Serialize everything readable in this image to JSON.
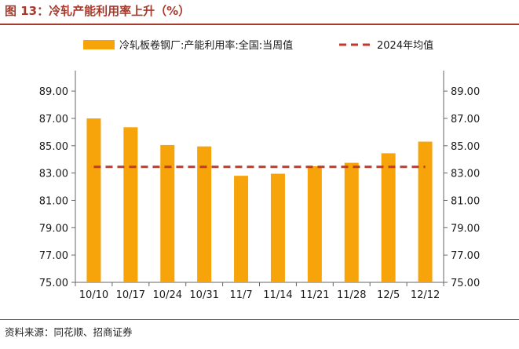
{
  "header": {
    "title": "图 13：冷轧产能利用率上升（%）"
  },
  "footer": {
    "source": "资料来源：同花顺、招商证券"
  },
  "chart_data": {
    "type": "bar",
    "categories": [
      "10/10",
      "10/17",
      "10/24",
      "10/31",
      "11/7",
      "11/14",
      "11/21",
      "11/28",
      "12/5",
      "12/12"
    ],
    "series": [
      {
        "name": "冷轧板卷钢厂:产能利用率:全国:当周值",
        "type": "bar",
        "color": "#f7a30a",
        "values": [
          87.0,
          86.35,
          85.05,
          84.95,
          82.8,
          82.95,
          83.5,
          83.75,
          84.45,
          85.3
        ]
      },
      {
        "name": "2024年均值",
        "type": "line",
        "style": "dashed",
        "color": "#c0392b",
        "values": [
          83.45,
          83.45,
          83.45,
          83.45,
          83.45,
          83.45,
          83.45,
          83.45,
          83.45,
          83.45
        ]
      }
    ],
    "y_left": {
      "min": 75,
      "max": 90.5,
      "ticks": [
        75.0,
        77.0,
        79.0,
        81.0,
        83.0,
        85.0,
        87.0,
        89.0
      ]
    },
    "y_right": {
      "min": 75,
      "max": 90.5,
      "ticks": [
        75.0,
        77.0,
        79.0,
        81.0,
        83.0,
        85.0,
        87.0,
        89.0
      ]
    },
    "tick_labels": [
      "75.00",
      "77.00",
      "79.00",
      "81.00",
      "83.00",
      "85.00",
      "87.00",
      "89.00"
    ],
    "legend_position": "top",
    "grid": false
  }
}
